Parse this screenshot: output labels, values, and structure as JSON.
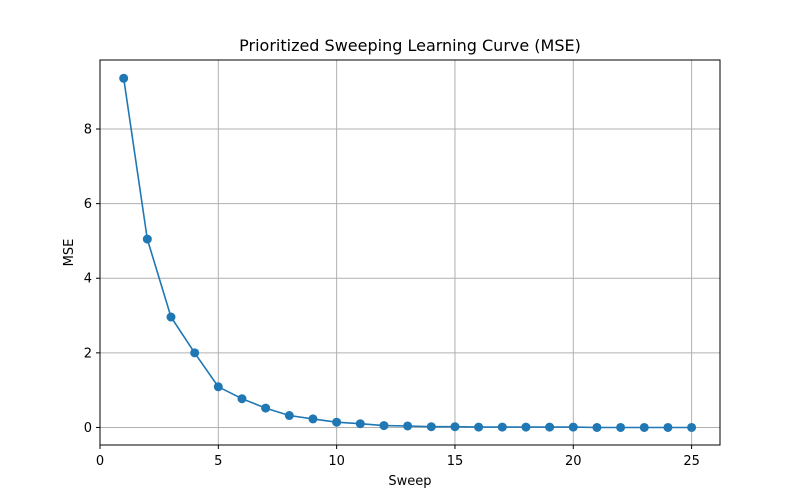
{
  "chart_data": {
    "type": "line",
    "title": "Prioritized Sweeping Learning Curve (MSE)",
    "xlabel": "Sweep",
    "ylabel": "MSE",
    "xlim": [
      0,
      26.2
    ],
    "ylim": [
      -0.47,
      9.85
    ],
    "xticks": [
      0,
      5,
      10,
      15,
      20,
      25
    ],
    "yticks": [
      0,
      2,
      4,
      6,
      8
    ],
    "grid": true,
    "marker": "circle",
    "line_color": "#1f77b4",
    "series": [
      {
        "x": [
          1,
          2,
          3,
          4,
          5,
          6,
          7,
          8,
          9,
          10,
          11,
          12,
          13,
          14,
          15,
          16,
          17,
          18,
          19,
          20,
          21,
          22,
          23,
          24,
          25
        ],
        "values": [
          9.36,
          5.05,
          2.96,
          2.0,
          1.09,
          0.77,
          0.52,
          0.32,
          0.23,
          0.14,
          0.1,
          0.05,
          0.04,
          0.02,
          0.02,
          0.01,
          0.01,
          0.01,
          0.01,
          0.01,
          0.0,
          0.0,
          0.0,
          0.0,
          0.0
        ]
      }
    ]
  }
}
